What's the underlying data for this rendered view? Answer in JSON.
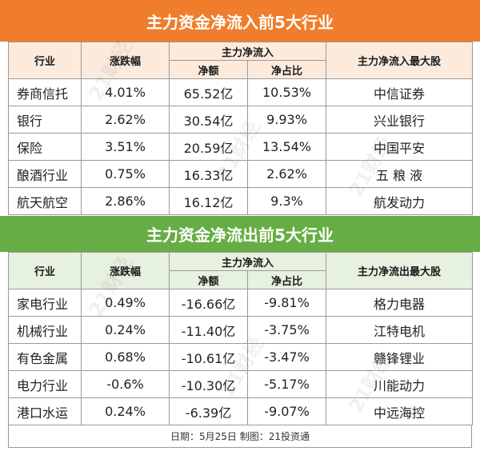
{
  "inflow": {
    "title": "主力资金净流入前5大行业",
    "headers": {
      "industry": "行业",
      "change": "涨跌幅",
      "group": "主力净流入",
      "net": "净额",
      "ratio": "净占比",
      "top_stock": "主力净流入最大股"
    },
    "rows": [
      {
        "industry": "券商信托",
        "change": "4.01%",
        "net": "65.52亿",
        "ratio": "10.53%",
        "stock": "中信证券"
      },
      {
        "industry": "银行",
        "change": "2.62%",
        "net": "30.54亿",
        "ratio": "9.93%",
        "stock": "兴业银行"
      },
      {
        "industry": "保险",
        "change": "3.51%",
        "net": "20.59亿",
        "ratio": "13.54%",
        "stock": "中国平安"
      },
      {
        "industry": "酿酒行业",
        "change": "0.75%",
        "net": "16.33亿",
        "ratio": "2.62%",
        "stock": "五 粮 液"
      },
      {
        "industry": "航天航空",
        "change": "2.86%",
        "net": "16.12亿",
        "ratio": "9.3%",
        "stock": "航发动力"
      }
    ]
  },
  "outflow": {
    "title": "主力资金净流出前5大行业",
    "headers": {
      "industry": "行业",
      "change": "涨跌幅",
      "group": "主力净流入",
      "net": "净额",
      "ratio": "净占比",
      "top_stock": "主力净流出最大股"
    },
    "rows": [
      {
        "industry": "家电行业",
        "change": "0.49%",
        "net": "-16.66亿",
        "ratio": "-9.81%",
        "stock": "格力电器"
      },
      {
        "industry": "机械行业",
        "change": "0.24%",
        "net": "-11.40亿",
        "ratio": "-3.75%",
        "stock": "江特电机"
      },
      {
        "industry": "有色金属",
        "change": "0.68%",
        "net": "-10.61亿",
        "ratio": "-3.47%",
        "stock": "赣锋锂业"
      },
      {
        "industry": "电力行业",
        "change": "-0.6%",
        "net": "-10.30亿",
        "ratio": "-5.17%",
        "stock": "川能动力"
      },
      {
        "industry": "港口水运",
        "change": "0.24%",
        "net": "-6.39亿",
        "ratio": "-9.07%",
        "stock": "中远海控"
      }
    ]
  },
  "footer": "日期：5月25日  制图：21投资通",
  "watermark_text": "21财经",
  "colors": {
    "inflow_banner": "#ef7d2b",
    "outflow_banner": "#67ad45",
    "inflow_header_bg": "#fcebdd",
    "outflow_header_bg": "#e7f1df"
  }
}
